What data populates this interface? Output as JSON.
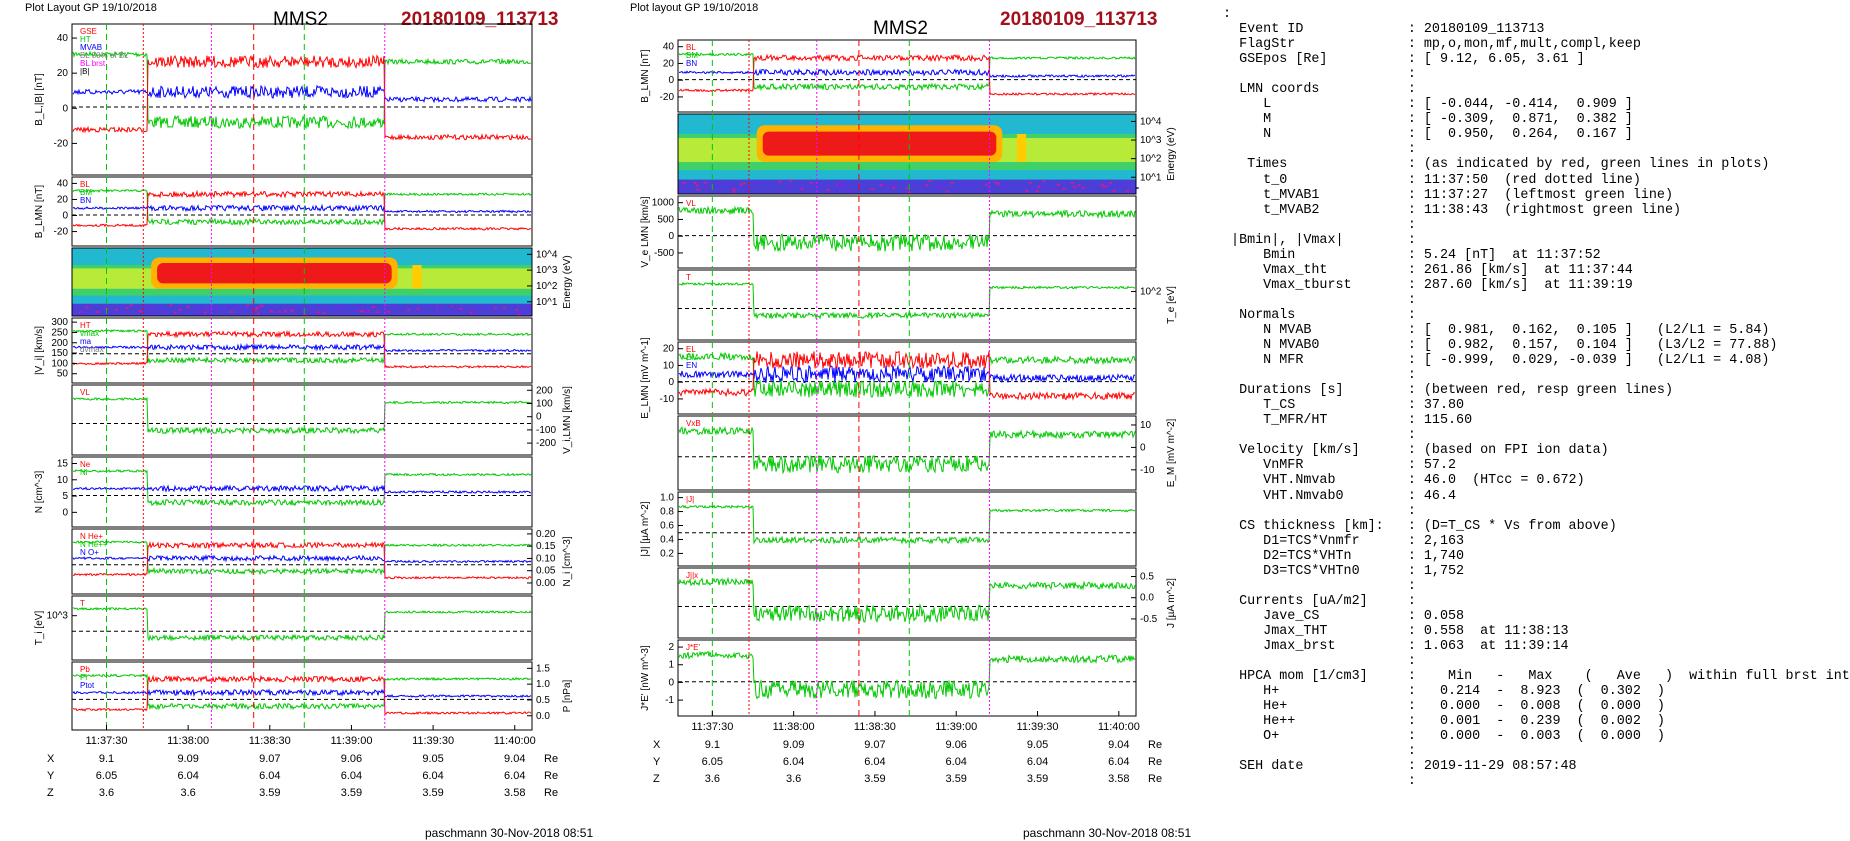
{
  "left_plot": {
    "header": "Plot Layout GP 19/10/2018",
    "spacecraft": "MMS2",
    "event": "20180109_113713",
    "footer": "paschmann 30-Nov-2018 08:51"
  },
  "right_plot": {
    "header": "Plot layout GP 19/10/2018",
    "spacecraft": "MMS2",
    "event": "20180109_113713",
    "footer": "paschmann 30-Nov-2018 08:51"
  },
  "colors": {
    "event_red": "#a50f1a",
    "red": "#ff0000",
    "green": "#00c800",
    "blue": "#0000ff",
    "black": "#000000",
    "magenta": "#ff00ff",
    "bold_blue": "#1f3fe6",
    "gray": "#808080",
    "grid_blue": "#4a6cff"
  },
  "chart_data": {
    "type": "line",
    "x_ticks": [
      "11:37:30",
      "11:38:00",
      "11:38:30",
      "11:39:00",
      "11:39:30",
      "11:40:00"
    ],
    "position_rows": [
      {
        "label": "X",
        "values": [
          "9.1",
          "9.09",
          "9.07",
          "9.06",
          "9.05",
          "9.04"
        ],
        "unit": "Re"
      },
      {
        "label": "Y",
        "values": [
          "6.05",
          "6.04",
          "6.04",
          "6.04",
          "6.04",
          "6.04"
        ],
        "unit": "Re"
      },
      {
        "label": "Z",
        "values": [
          "3.6",
          "3.6",
          "3.59",
          "3.59",
          "3.59",
          "3.58"
        ],
        "unit": "Re"
      }
    ],
    "left_panels": [
      {
        "ylabel": "B_L,|B| [nT]",
        "ticks_left": [
          "40",
          "20",
          "0",
          "-20"
        ],
        "ticks_right": [],
        "legend": [
          "GSE",
          "HT",
          "MVAB",
          "BL 50% of BL",
          "BL brst",
          "|B|"
        ]
      },
      {
        "ylabel": "B_LMN [nT]",
        "ticks_left": [
          "40",
          "20",
          "0",
          "-20"
        ],
        "ticks_right": [],
        "legend": [
          "BL",
          "BM",
          "BN"
        ]
      },
      {
        "ylabel": "Energy (eV)",
        "ticks_left": [],
        "ticks_right": [
          "10^4",
          "10^3",
          "10^2",
          "10^1"
        ],
        "legend": []
      },
      {
        "ylabel": "|V_i| [km/s]",
        "ticks_left": [
          "300",
          "250",
          "200",
          "150",
          "100",
          "50"
        ],
        "ticks_right": [],
        "legend": [
          "HT",
          "vmax",
          "ma",
          "dvmax"
        ]
      },
      {
        "ylabel": "V_i,LMN [km/s]",
        "ticks_left": [],
        "ticks_right": [
          "200",
          "100",
          "0",
          "-100",
          "-200"
        ],
        "legend": [
          "VL"
        ]
      },
      {
        "ylabel": "N [cm^-3]",
        "ticks_left": [
          "15",
          "10",
          "5",
          "0"
        ],
        "ticks_right": [],
        "legend": [
          "Ne",
          "Ni"
        ]
      },
      {
        "ylabel": "N_i [cm^-3]",
        "ticks_left": [],
        "ticks_right": [
          "0.20",
          "0.15",
          "0.10",
          "0.05",
          "0.00"
        ],
        "legend": [
          "N He+",
          "N He++",
          "N O+"
        ]
      },
      {
        "ylabel": "T_i [eV]",
        "ticks_left": [
          "10^3"
        ],
        "ticks_right": [],
        "legend": [
          "T"
        ]
      },
      {
        "ylabel": "P [nPa]",
        "ticks_left": [],
        "ticks_right": [
          "1.5",
          "1.0",
          "0.5",
          "0.0"
        ],
        "legend": [
          "Pb",
          "Pi",
          "Ptot"
        ]
      }
    ],
    "right_panels": [
      {
        "ylabel": "B_LMN [nT]",
        "ticks_left": [
          "40",
          "20",
          "0",
          "-20"
        ],
        "ticks_right": [],
        "legend": [
          "BL",
          "BM",
          "BN"
        ]
      },
      {
        "ylabel": "Energy (eV)",
        "ticks_left": [],
        "ticks_right": [
          "10^4",
          "10^3",
          "10^2",
          "10^1"
        ],
        "legend": []
      },
      {
        "ylabel": "V_e LMN [km/s]",
        "ticks_left": [
          "1000",
          "500",
          "0",
          "-500"
        ],
        "ticks_right": [],
        "legend": [
          "VL"
        ]
      },
      {
        "ylabel": "T_e [eV]",
        "ticks_left": [],
        "ticks_right": [
          "10^2"
        ],
        "legend": [
          "T"
        ]
      },
      {
        "ylabel": "E_LMN [mV m^-1]",
        "ticks_left": [
          "20",
          "10",
          "0",
          "-10"
        ],
        "ticks_right": [],
        "legend": [
          "EL",
          "EM",
          "EN"
        ]
      },
      {
        "ylabel": "E_M [mV m^-2]",
        "ticks_left": [],
        "ticks_right": [
          "10",
          "0",
          "-10"
        ],
        "legend": [
          "VxB"
        ]
      },
      {
        "ylabel": "|J| [µA m^-2]",
        "ticks_left": [
          "1.0",
          "0.8",
          "0.6",
          "0.4",
          "0.2"
        ],
        "ticks_right": [],
        "legend": [
          "|J|"
        ]
      },
      {
        "ylabel": "J [µA m^-2]",
        "ticks_left": [],
        "ticks_right": [
          "0.5",
          "0.0",
          "-0.5"
        ],
        "legend": [
          "J||x"
        ]
      },
      {
        "ylabel": "J*E' [nW m^-3]",
        "ticks_left": [
          "2",
          "1",
          "0",
          "-1"
        ],
        "ticks_right": [],
        "legend": [
          "J*E'"
        ]
      }
    ]
  },
  "info_panel": {
    "lines": [
      ":",
      "  Event ID             : 20180109_113713",
      "  FlagStr              : mp,o,mon,mf,mult,compl,keep",
      "  GSEpos [Re]          : [ 9.12, 6.05, 3.61 ]",
      "                       :",
      "  LMN coords           :",
      "     L                 : [ -0.044, -0.414,  0.909 ]",
      "     M                 : [ -0.309,  0.871,  0.382 ]",
      "     N                 : [  0.950,  0.264,  0.167 ]",
      "                       :",
      "   Times               : (as indicated by red, green lines in plots)",
      "     t_0               : 11:37:50  (red dotted line)",
      "     t_MVAB1           : 11:37:27  (leftmost green line)",
      "     t_MVAB2           : 11:38:43  (rightmost green line)",
      "                       :",
      " |Bmin|, |Vmax|        :",
      "     Bmin              : 5.24 [nT]  at 11:37:52",
      "     Vmax_tht          : 261.86 [km/s]  at 11:37:44",
      "     Vmax_tburst       : 287.60 [km/s]  at 11:39:19",
      "                       :",
      "  Normals              :",
      "     N MVAB            : [  0.981,  0.162,  0.105 ]   (L2/L1 = 5.84)",
      "     N MVAB0           : [  0.982,  0.157,  0.104 ]   (L3/L2 = 77.88)",
      "     N MFR             : [ -0.999,  0.029, -0.039 ]   (L2/L1 = 4.08)",
      "                       :",
      "  Durations [s]        : (between red, resp green lines)",
      "     T_CS              : 37.80",
      "     T_MFR/HT          : 115.60",
      "                       :",
      "  Velocity [km/s]      : (based on FPI ion data)",
      "     VnMFR             : 57.2",
      "     VHT.Nmvab         : 46.0  (HTcc = 0.672)",
      "     VHT.Nmvab0        : 46.4",
      "                       :",
      "  CS thickness [km]:   : (D=T_CS * Vs from above)",
      "     D1=TCS*Vnmfr      : 2,163",
      "     D2=TCS*VHTn       : 1,740",
      "     D3=TCS*VHTn0      : 1,752",
      "                       :",
      "  Currents [uA/m2]     :",
      "     Jave_CS           : 0.058",
      "     Jmax_THT          : 0.558  at 11:38:13",
      "     Jmax_brst         : 1.063  at 11:39:14",
      "                       :",
      "  HPCA mom [1/cm3]     :    Min   -   Max    (   Ave   )  within full brst int",
      "     H+                :   0.214  -  8.923  (  0.302  )",
      "     He+               :   0.000  -  0.008  (  0.000  )",
      "     He++              :   0.001  -  0.239  (  0.002  )",
      "     O+                :   0.000  -  0.003  (  0.000  )",
      "                       :",
      "  SEH date             : 2019-11-29 08:57:48",
      "                       :"
    ]
  }
}
